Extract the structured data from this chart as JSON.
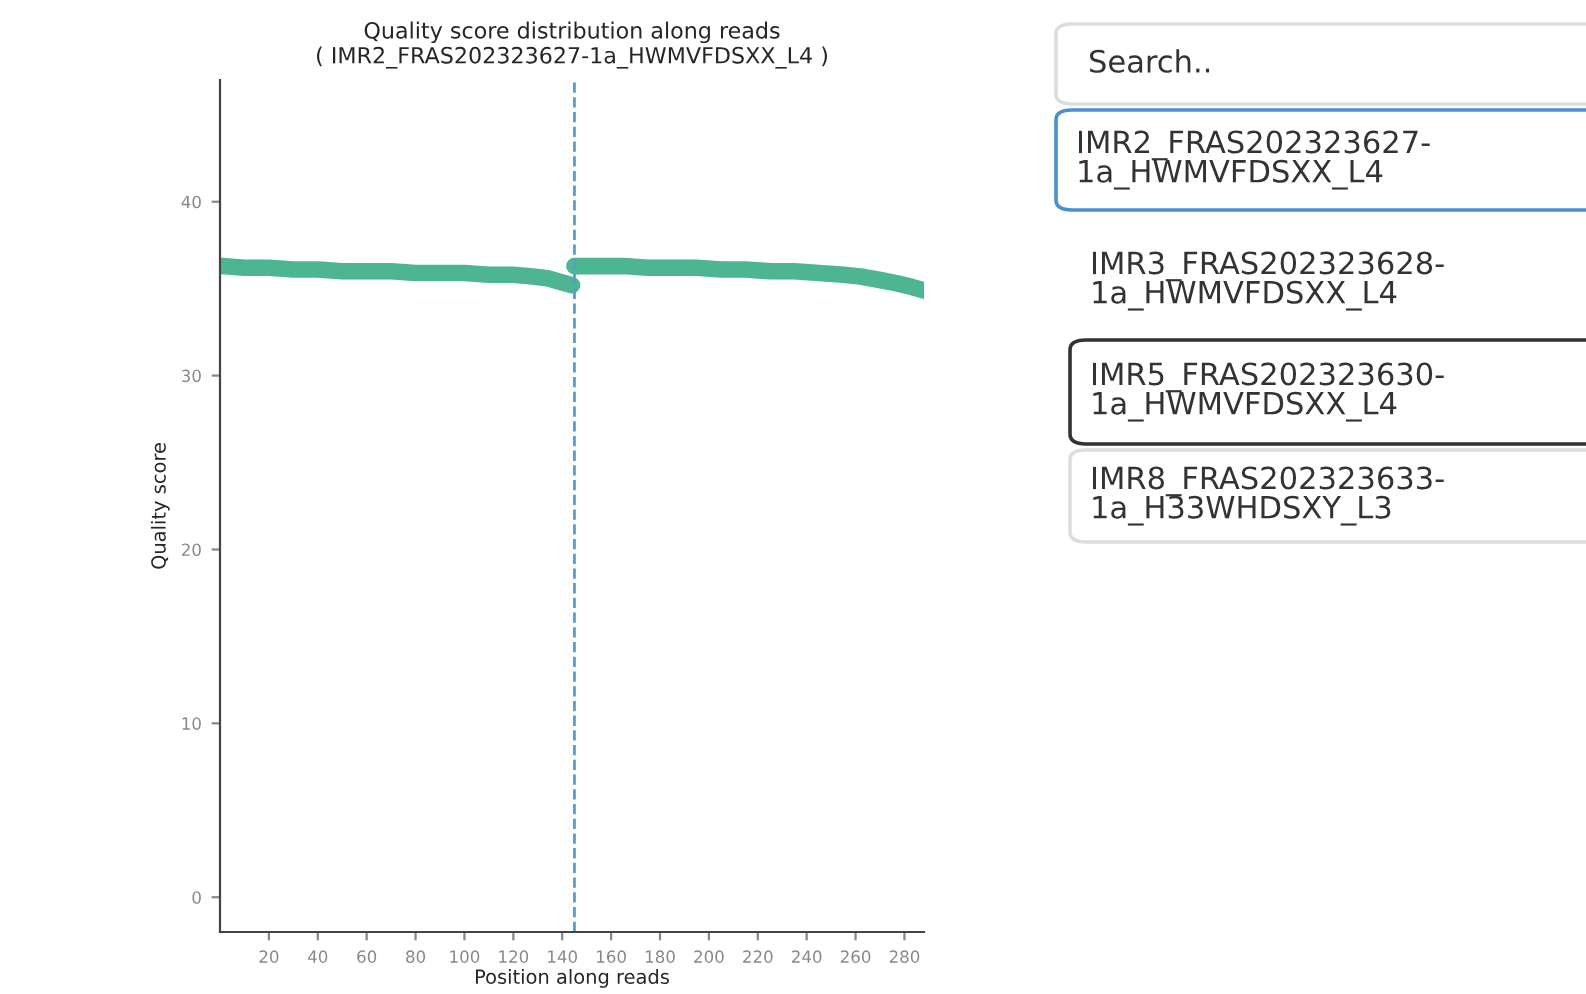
{
  "chart_data": {
    "type": "line",
    "title": "Quality score distribution along reads\n( IMR2_FRAS202323627-1a_HWMVFDSXX_L4 )",
    "xlabel": "Position along reads",
    "ylabel": "Quality score",
    "series": [
      {
        "color": "#4db592",
        "x": [
          1,
          10,
          20,
          30,
          40,
          50,
          60,
          70,
          80,
          90,
          100,
          110,
          120,
          128,
          134,
          139,
          144
        ],
        "values": [
          36.3,
          36.2,
          36.2,
          36.1,
          36.1,
          36.0,
          36.0,
          36.0,
          35.9,
          35.9,
          35.9,
          35.8,
          35.8,
          35.7,
          35.6,
          35.4,
          35.2
        ]
      },
      {
        "color": "#4db592",
        "x": [
          145,
          155,
          165,
          175,
          185,
          195,
          205,
          215,
          225,
          235,
          245,
          255,
          262,
          270,
          277,
          283,
          288
        ],
        "values": [
          36.3,
          36.3,
          36.3,
          36.2,
          36.2,
          36.2,
          36.1,
          36.1,
          36.0,
          36.0,
          35.9,
          35.8,
          35.7,
          35.5,
          35.3,
          35.1,
          34.9
        ]
      }
    ],
    "xlim": [
      0,
      288
    ],
    "ylim": [
      -2,
      47
    ],
    "xticks": [
      20,
      40,
      60,
      80,
      100,
      120,
      140,
      160,
      180,
      200,
      220,
      240,
      260,
      280
    ],
    "yticks": [
      0,
      10,
      20,
      30,
      40
    ],
    "ref_lines": [
      {
        "axis": "x",
        "value": 145,
        "color": "#5b9bc9",
        "line_style": "dashed"
      }
    ],
    "grid": false,
    "legend": false,
    "annotations": [
      "Search..",
      "IMR2_FRAS202323627-\n1a_HWMVFDSXX_L4",
      "IMR3_FRAS202323628-\n1a_HWMVFDSXX_L4",
      "IMR5_FRAS202323630-\n1a_HWMVFDSXX_L4",
      "IMR8_FRAS202323633-\n1a_H33WHDSXY_L3"
    ]
  }
}
